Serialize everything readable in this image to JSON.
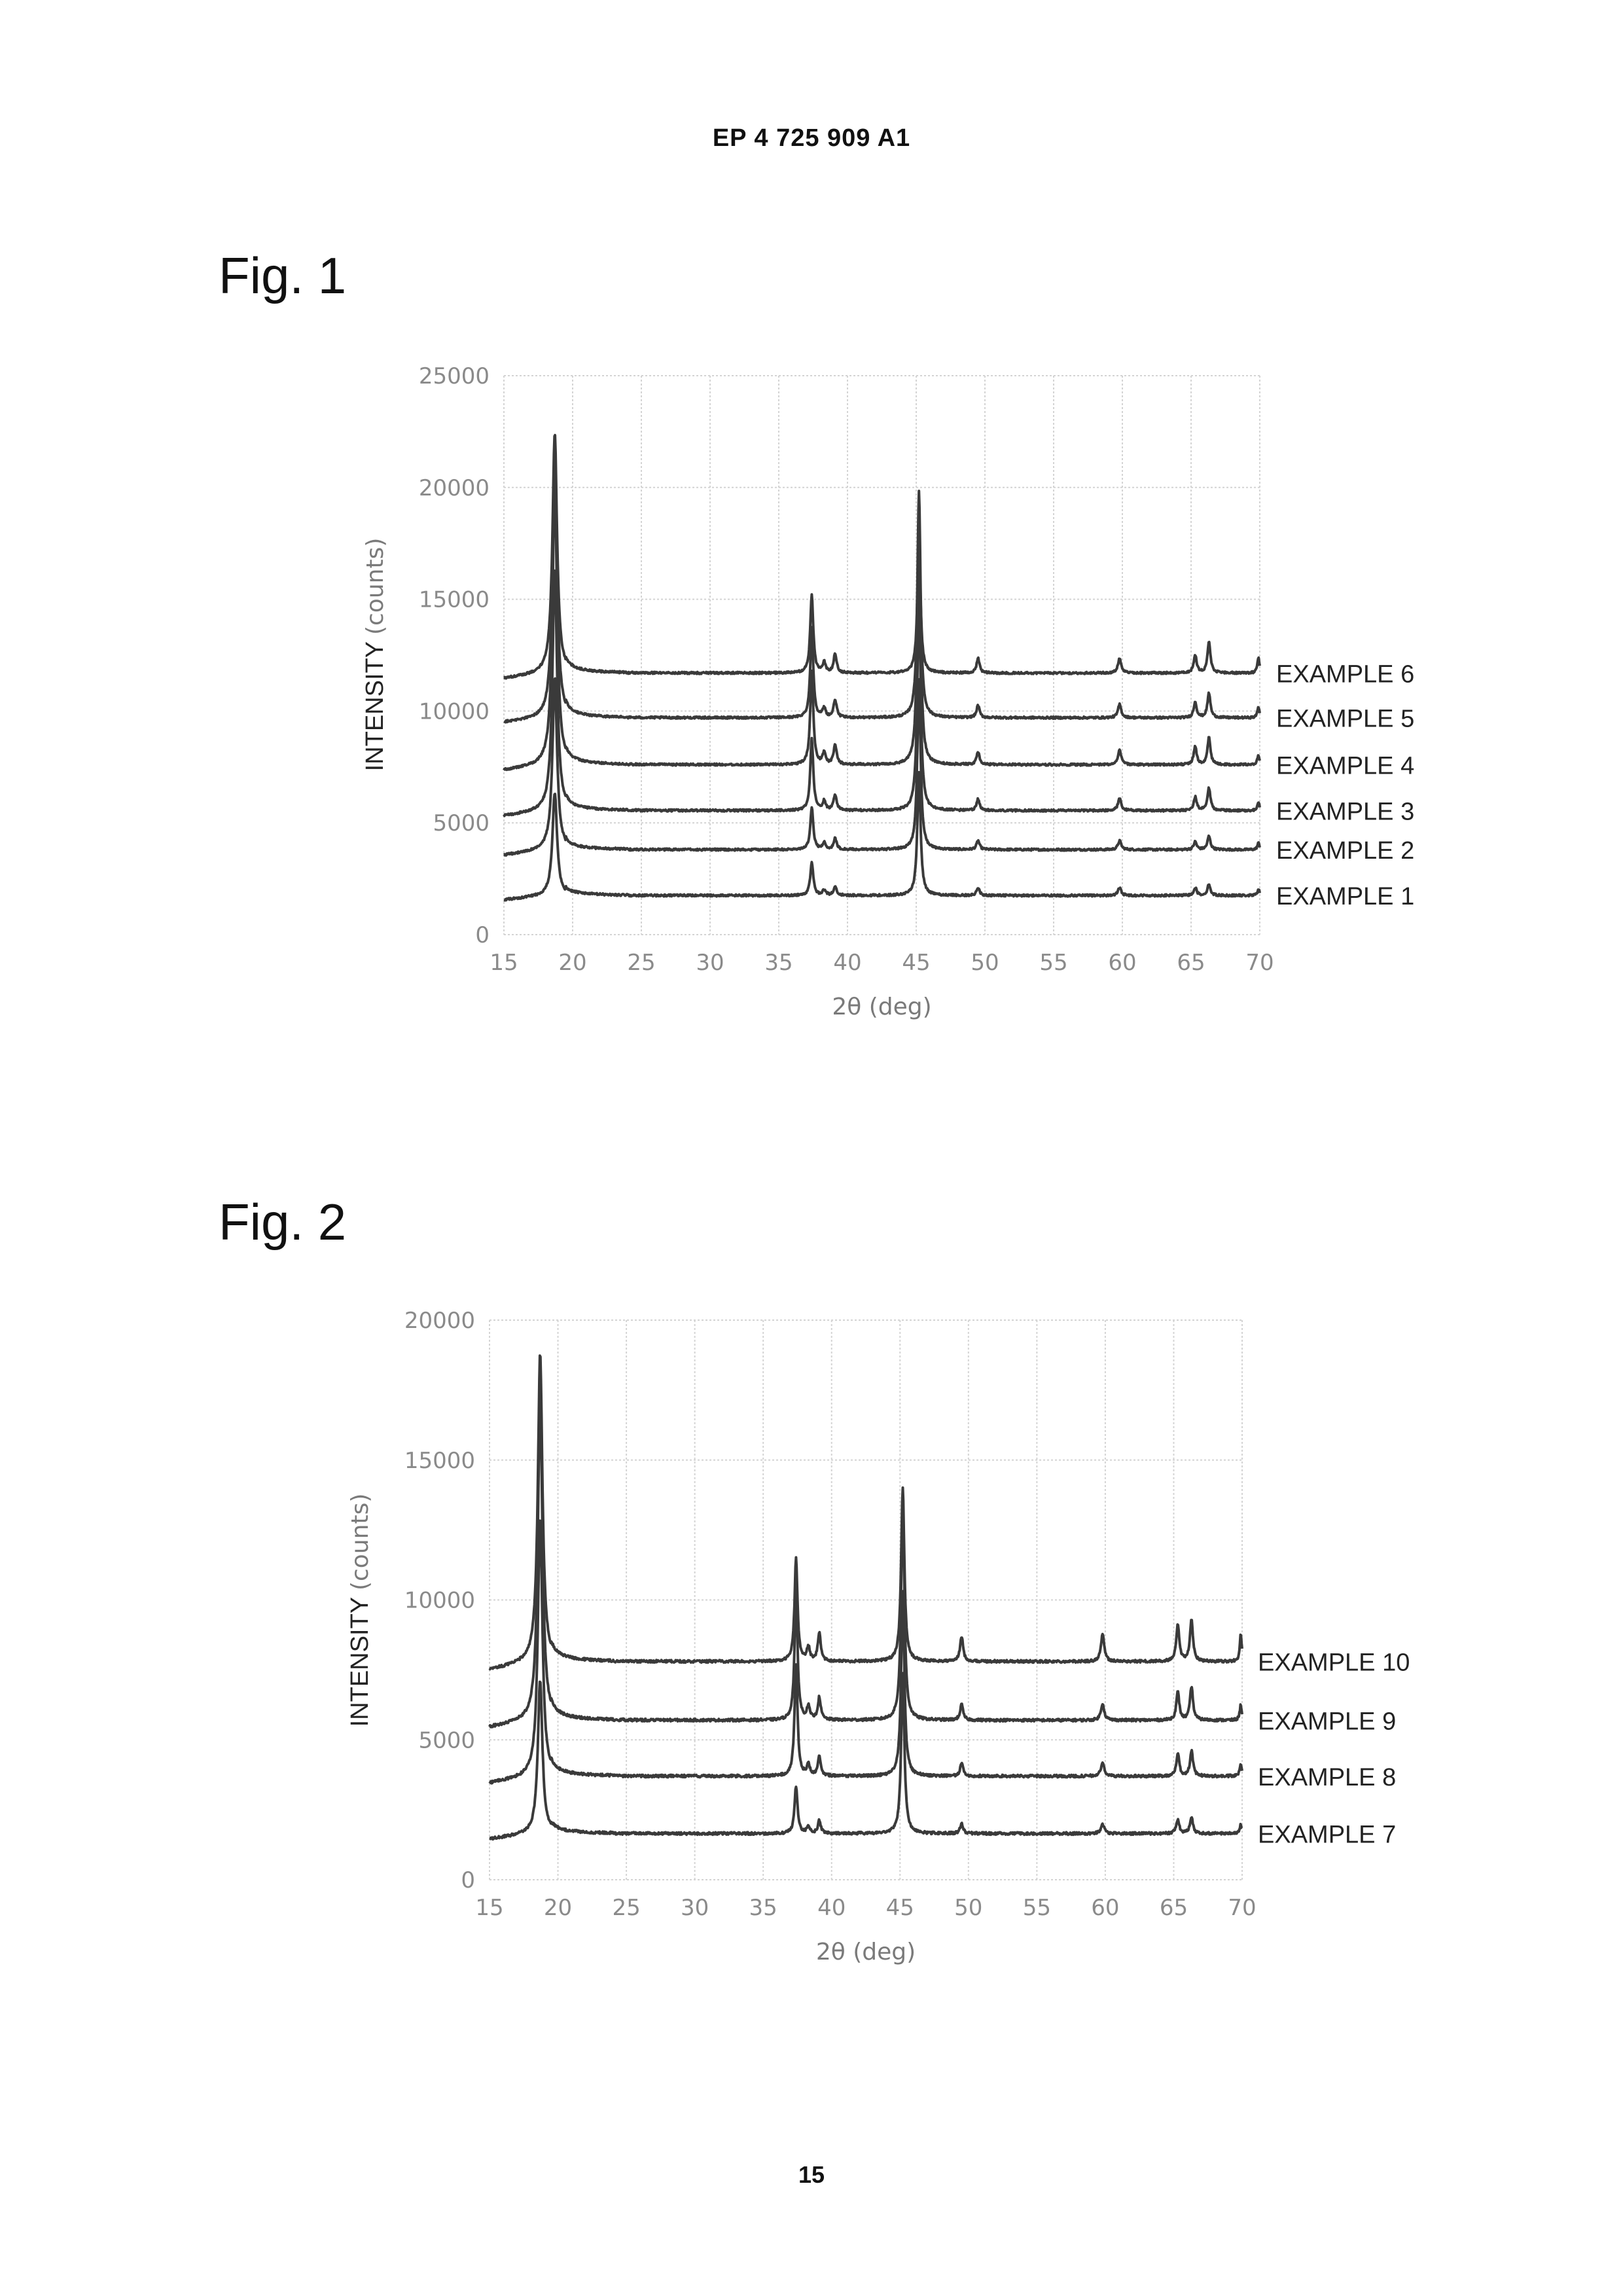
{
  "header": {
    "publication": "EP 4 725 909 A1",
    "page_number": "15"
  },
  "figures": [
    {
      "label": "Fig. 1"
    },
    {
      "label": "Fig. 2"
    }
  ],
  "chart_data": [
    {
      "type": "line",
      "title": "",
      "xlabel": "2θ (deg)",
      "ylabel_main": "INTENSITY",
      "ylabel_unit": "(counts)",
      "xlim": [
        15,
        70
      ],
      "ylim": [
        0,
        25000
      ],
      "xticks": [
        15,
        20,
        25,
        30,
        35,
        40,
        45,
        50,
        55,
        60,
        65,
        70
      ],
      "yticks": [
        0,
        5000,
        10000,
        15000,
        20000,
        25000
      ],
      "grid": true,
      "legend_position": "right, inline at line ends",
      "peak_positions": [
        18.7,
        37.4,
        38.3,
        39.1,
        45.2,
        49.5,
        59.8,
        65.3,
        66.3,
        69.9
      ],
      "series": [
        {
          "name": "EXAMPLE 1",
          "start": 1550,
          "baseline": 1750,
          "end": 1750,
          "peaks": [
            4600,
            1500,
            250,
            400,
            5500,
            350,
            350,
            350,
            500,
            300
          ]
        },
        {
          "name": "EXAMPLE 2",
          "start": 3550,
          "baseline": 3800,
          "end": 3800,
          "peaks": [
            7700,
            1900,
            300,
            500,
            7600,
            400,
            400,
            350,
            600,
            300
          ]
        },
        {
          "name": "EXAMPLE 3",
          "start": 5300,
          "baseline": 5550,
          "end": 5550,
          "peaks": [
            10800,
            3200,
            400,
            700,
            9900,
            500,
            550,
            600,
            1000,
            400
          ]
        },
        {
          "name": "EXAMPLE 4",
          "start": 7350,
          "baseline": 7600,
          "end": 7600,
          "peaks": [
            12500,
            4200,
            500,
            900,
            11400,
            550,
            650,
            800,
            1200,
            450
          ]
        },
        {
          "name": "EXAMPLE 5",
          "start": 9500,
          "baseline": 9700,
          "end": 9700,
          "peaks": [
            11500,
            4000,
            400,
            800,
            10100,
            550,
            600,
            700,
            1100,
            500
          ]
        },
        {
          "name": "EXAMPLE 6",
          "start": 11450,
          "baseline": 11700,
          "end": 11700,
          "peaks": [
            10700,
            3500,
            450,
            850,
            5700,
            650,
            650,
            800,
            1400,
            700
          ]
        }
      ]
    },
    {
      "type": "line",
      "title": "",
      "xlabel": "2θ (deg)",
      "ylabel_main": "INTENSITY",
      "ylabel_unit": "(counts)",
      "xlim": [
        15,
        70
      ],
      "ylim": [
        0,
        20000
      ],
      "xticks": [
        15,
        20,
        25,
        30,
        35,
        40,
        45,
        50,
        55,
        60,
        65,
        70
      ],
      "yticks": [
        0,
        5000,
        10000,
        15000,
        20000
      ],
      "grid": true,
      "legend_position": "right, inline at line ends",
      "peak_positions": [
        18.7,
        37.4,
        38.3,
        39.1,
        45.2,
        49.5,
        59.8,
        65.3,
        66.3,
        69.9
      ],
      "series": [
        {
          "name": "EXAMPLE 7",
          "start": 1450,
          "baseline": 1650,
          "end": 1650,
          "peaks": [
            5500,
            1700,
            250,
            450,
            5700,
            350,
            350,
            500,
            600,
            350
          ]
        },
        {
          "name": "EXAMPLE 8",
          "start": 3450,
          "baseline": 3700,
          "end": 3700,
          "peaks": [
            9200,
            4000,
            400,
            700,
            6600,
            450,
            500,
            800,
            900,
            450
          ]
        },
        {
          "name": "EXAMPLE 9",
          "start": 5450,
          "baseline": 5700,
          "end": 5700,
          "peaks": [
            11500,
            4600,
            450,
            800,
            8000,
            550,
            600,
            1000,
            1200,
            550
          ]
        },
        {
          "name": "EXAMPLE 10",
          "start": 7500,
          "baseline": 7800,
          "end": 7800,
          "peaks": [
            11000,
            3700,
            500,
            1000,
            6200,
            900,
            1000,
            1300,
            1500,
            950
          ]
        }
      ]
    }
  ]
}
